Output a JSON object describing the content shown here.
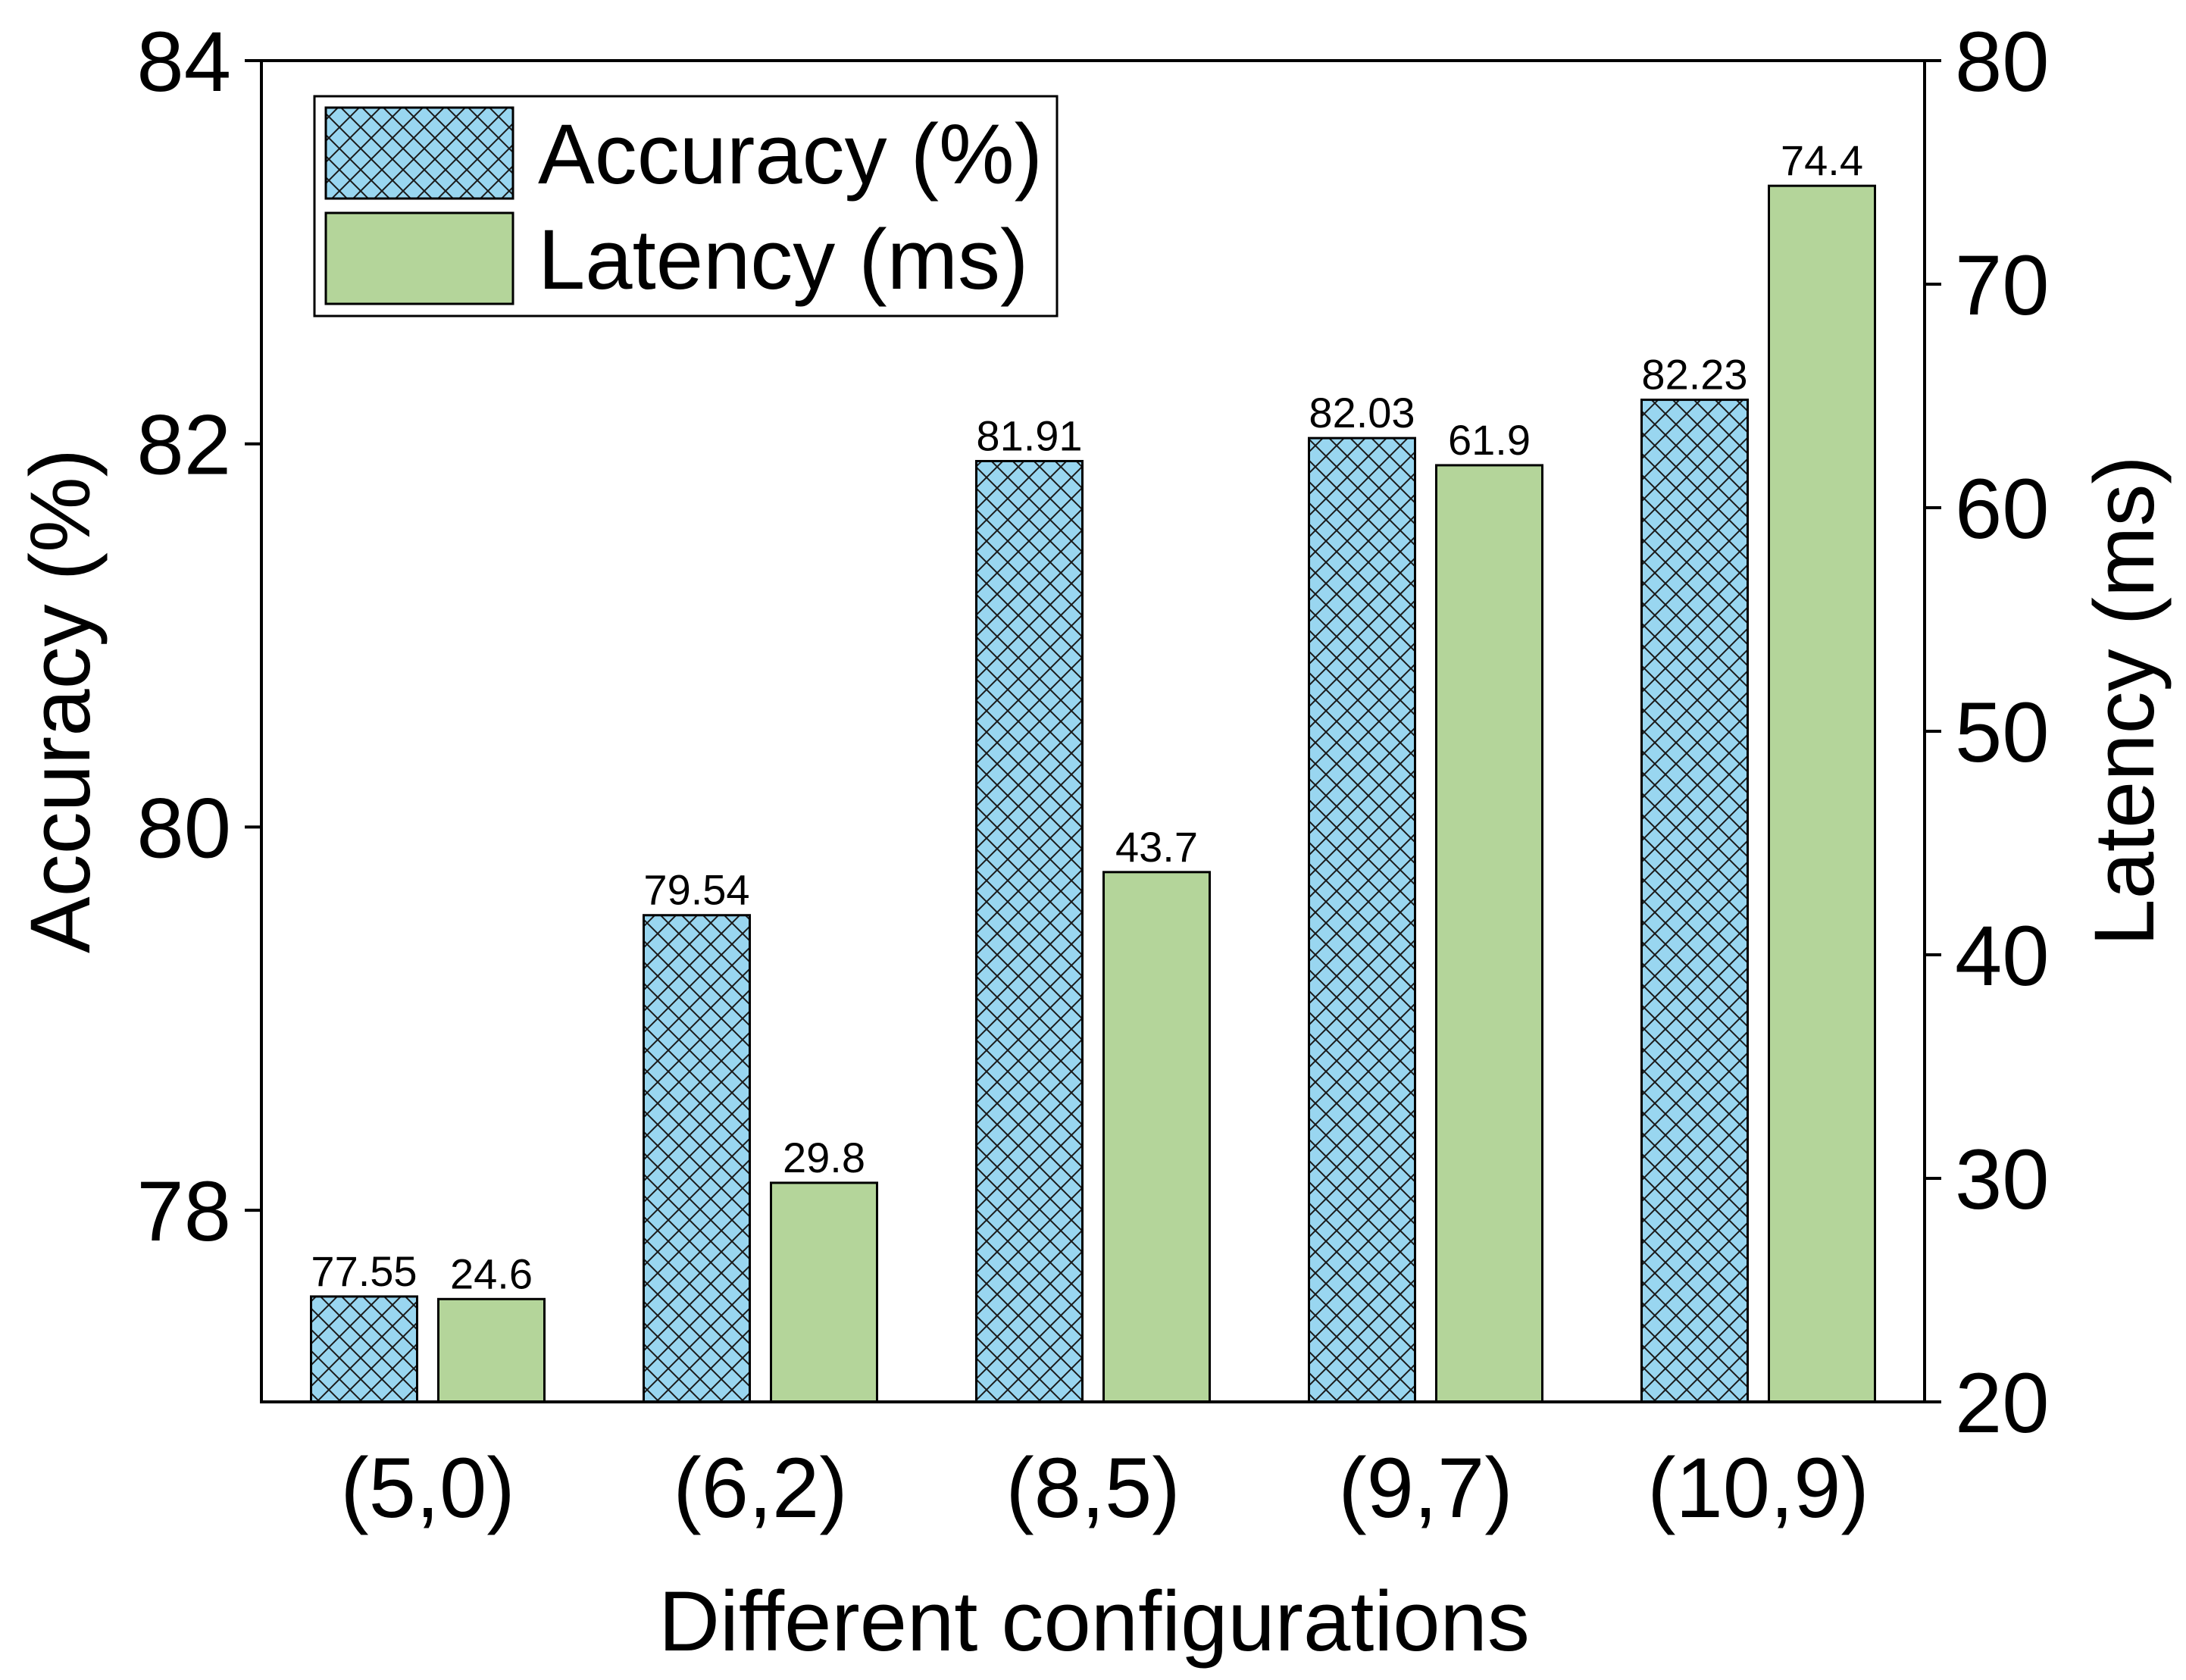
{
  "chart_data": {
    "type": "bar",
    "categories": [
      "(5,0)",
      "(6,2)",
      "(8,5)",
      "(9,7)",
      "(10,9)"
    ],
    "xlabel": "Different configurations",
    "series": [
      {
        "name": "Accuracy (%)",
        "axis": "left",
        "values": [
          77.55,
          79.54,
          81.91,
          82.03,
          82.23
        ],
        "labels": [
          "77.55",
          "79.54",
          "81.91",
          "82.03",
          "82.23"
        ],
        "color": "#99d6f0",
        "pattern": "crosshatch"
      },
      {
        "name": "Latency (ms)",
        "axis": "right",
        "values": [
          24.6,
          29.8,
          43.7,
          61.9,
          74.4
        ],
        "labels": [
          "24.6",
          "29.8",
          "43.7",
          "61.9",
          "74.4"
        ],
        "color": "#b4d59a",
        "pattern": "solid"
      }
    ],
    "y_left": {
      "label": "Accuracy (%)",
      "range": [
        77,
        84
      ],
      "ticks": [
        78,
        80,
        82,
        84
      ],
      "tick_labels": [
        "78",
        "80",
        "82",
        "84"
      ]
    },
    "y_right": {
      "label": "Latency (ms)",
      "range": [
        20,
        80
      ],
      "ticks": [
        20,
        30,
        40,
        50,
        60,
        70,
        80
      ],
      "tick_labels": [
        "20",
        "30",
        "40",
        "50",
        "60",
        "70",
        "80"
      ]
    },
    "legend": {
      "position": "top-left"
    },
    "grid": false
  }
}
